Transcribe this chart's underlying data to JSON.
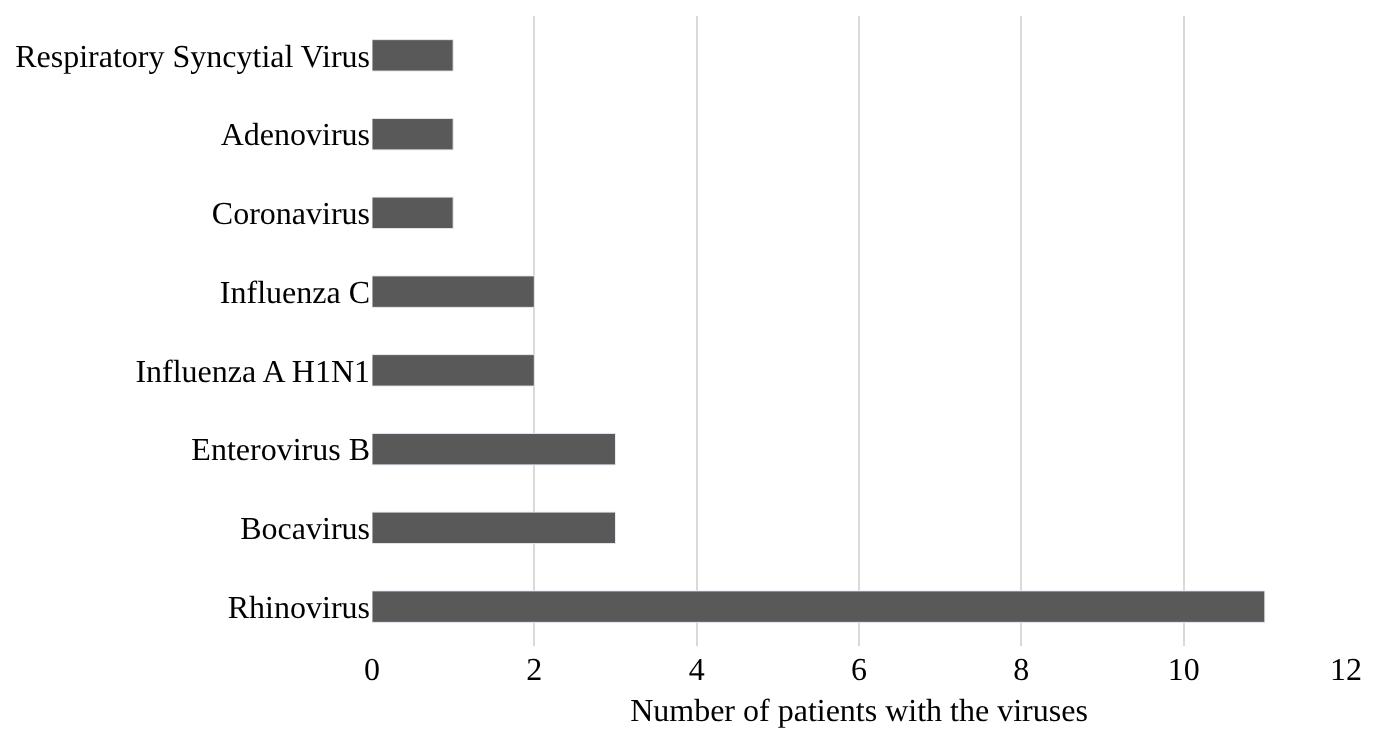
{
  "chart_data": {
    "type": "bar",
    "orientation": "horizontal",
    "xlabel": "Number of patients with the viruses",
    "categories": [
      "Respiratory Syncytial Virus",
      "Adenovirus",
      "Coronavirus",
      "Influenza C",
      "Influenza A H1N1",
      "Enterovirus B",
      "Bocavirus",
      "Rhinovirus"
    ],
    "values": [
      1,
      1,
      1,
      2,
      2,
      3,
      3,
      11
    ],
    "color": "#595959",
    "xlim": [
      0,
      12
    ],
    "xticks": [
      0,
      2,
      4,
      6,
      8,
      10,
      12
    ],
    "grid": "x",
    "legend": false
  }
}
